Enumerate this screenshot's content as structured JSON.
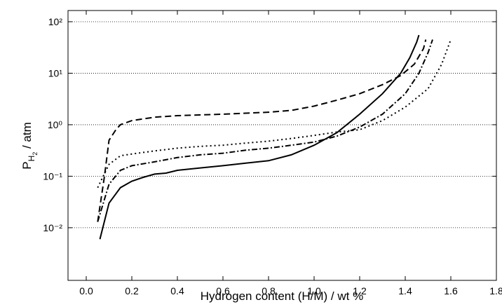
{
  "chart_data": {
    "type": "line",
    "xlabel": "Hydrogen content (H/M) / wt %",
    "ylabel": {
      "symbol": "P",
      "subscript": "H",
      "sub_subscript": "2",
      "unit": " / atm"
    },
    "xlim": [
      -0.08,
      1.8
    ],
    "xticks": [
      {
        "value": 0,
        "label": "0.0"
      },
      0.2,
      0.4,
      0.6,
      0.8,
      {
        "value": 1,
        "label": "1.0"
      },
      1.2,
      1.4,
      1.6,
      1.8
    ],
    "ylim": [
      0.00095,
      165
    ],
    "ylog": true,
    "yticks": [
      {
        "value": 0.01,
        "label": "10⁻²"
      },
      {
        "value": 0.1,
        "label": "10⁻¹"
      },
      {
        "value": 1,
        "label": "10⁰"
      },
      {
        "value": 10,
        "label": "10¹"
      },
      {
        "value": 100,
        "label": "10²"
      }
    ],
    "grid": true,
    "series": [
      {
        "color": "#000000",
        "style": "solid",
        "x": [
          0.06,
          0.1,
          0.15,
          0.2,
          0.25,
          0.3,
          0.35,
          0.4,
          0.5,
          0.6,
          0.7,
          0.8,
          0.9,
          1.0,
          1.1,
          1.2,
          1.3,
          1.38,
          1.42,
          1.45,
          1.46
        ],
        "values": [
          0.006,
          0.03,
          0.06,
          0.08,
          0.095,
          0.11,
          0.115,
          0.13,
          0.145,
          0.16,
          0.18,
          0.2,
          0.26,
          0.4,
          0.7,
          1.6,
          4,
          10,
          20,
          40,
          55
        ]
      },
      {
        "color": "#000000",
        "style": "dashed",
        "x": [
          0.05,
          0.08,
          0.1,
          0.13,
          0.15,
          0.2,
          0.3,
          0.4,
          0.6,
          0.8,
          0.9,
          1.0,
          1.1,
          1.2,
          1.3,
          1.38,
          1.44,
          1.48,
          1.49
        ],
        "values": [
          0.013,
          0.1,
          0.5,
          0.8,
          1.0,
          1.2,
          1.4,
          1.5,
          1.6,
          1.75,
          1.9,
          2.3,
          3,
          4,
          6,
          9,
          15,
          30,
          45
        ]
      },
      {
        "color": "#000000",
        "style": "dashdot",
        "x": [
          0.05,
          0.1,
          0.15,
          0.2,
          0.3,
          0.4,
          0.5,
          0.6,
          0.7,
          0.8,
          0.9,
          1.0,
          1.1,
          1.2,
          1.3,
          1.4,
          1.46,
          1.5,
          1.52
        ],
        "values": [
          0.013,
          0.07,
          0.13,
          0.16,
          0.19,
          0.23,
          0.26,
          0.28,
          0.32,
          0.35,
          0.4,
          0.46,
          0.6,
          0.9,
          1.6,
          4,
          10,
          25,
          45
        ]
      },
      {
        "color": "#000000",
        "style": "dotted",
        "x": [
          0.05,
          0.1,
          0.15,
          0.2,
          0.3,
          0.4,
          0.5,
          0.6,
          0.7,
          0.8,
          0.9,
          1.0,
          1.1,
          1.2,
          1.3,
          1.4,
          1.5,
          1.56,
          1.6
        ],
        "values": [
          0.06,
          0.17,
          0.25,
          0.27,
          0.31,
          0.35,
          0.38,
          0.4,
          0.44,
          0.48,
          0.54,
          0.62,
          0.72,
          0.8,
          1.2,
          2.2,
          5,
          15,
          45
        ]
      }
    ]
  }
}
